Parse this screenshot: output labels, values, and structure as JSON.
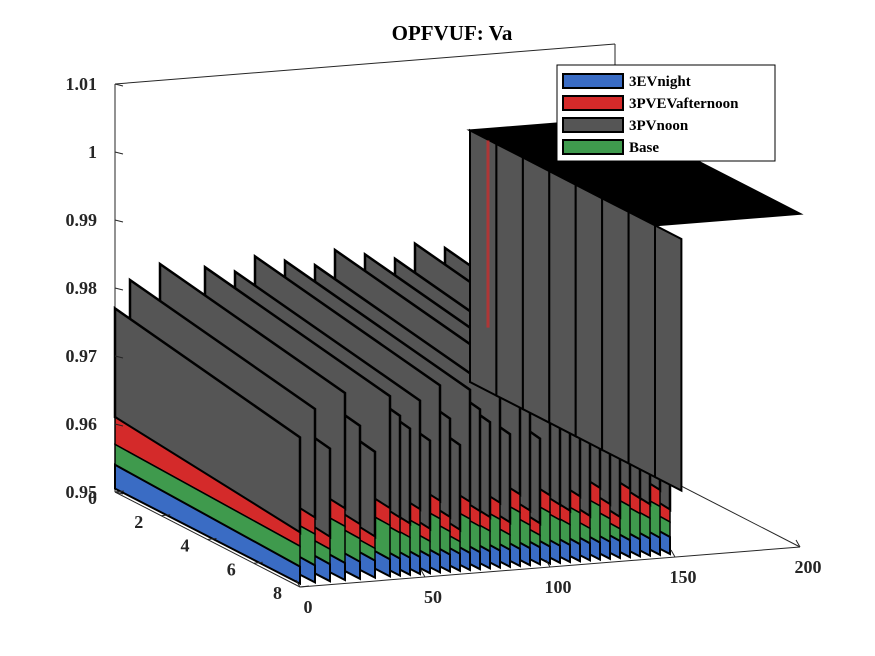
{
  "chart_data": {
    "type": "surface3d",
    "title": "OPFVUF: Va",
    "zlim": [
      0.95,
      1.01
    ],
    "z_ticks": [
      "0.95",
      "0.96",
      "0.97",
      "0.98",
      "0.99",
      "1",
      "1.01"
    ],
    "xlim": [
      0,
      200
    ],
    "x_ticks": [
      "0",
      "50",
      "100",
      "150",
      "200"
    ],
    "ylim": [
      0,
      8
    ],
    "y_ticks": [
      "0",
      "2",
      "4",
      "6",
      "8"
    ],
    "legend": {
      "location": "top-right"
    },
    "series": [
      {
        "name": "3EVnight",
        "color": "#3a6cc4",
        "base_level": 0.952
      },
      {
        "name": "3PVEVafternoon",
        "color": "#d42a2a",
        "base_level": 0.958
      },
      {
        "name": "3PVnoon",
        "color": "#555555",
        "base_level": 0.965,
        "plateau_level": 0.999,
        "plateau_from_x": 142
      },
      {
        "name": "Base",
        "color": "#3f9a4d",
        "base_level": 0.956
      }
    ]
  }
}
